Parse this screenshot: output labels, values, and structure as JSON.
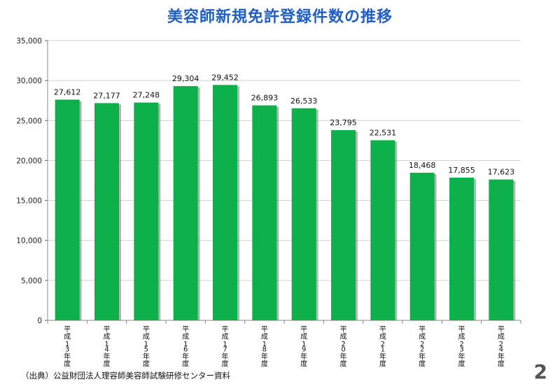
{
  "title": "美容師新規免許登録件数の推移",
  "source": "（出典）公益財団法人理容師美容師試験研修センター資料",
  "page_number": "2",
  "colors": {
    "bar": "#0db04b",
    "bar_shadow": "#7a7a7a",
    "grid": "#d0d0d0",
    "title": "#1f5fc4"
  },
  "chart_data": {
    "type": "bar",
    "title": "美容師新規免許登録件数の推移",
    "xlabel": "",
    "ylabel": "",
    "categories": [
      "平成13年度",
      "平成14年度",
      "平成15年度",
      "平成16年度",
      "平成17年度",
      "平成18年度",
      "平成19年度",
      "平成20年度",
      "平成21年度",
      "平成22年度",
      "平成23年度",
      "平成24年度"
    ],
    "values": [
      27612,
      27177,
      27248,
      29304,
      29452,
      26893,
      26533,
      23795,
      22531,
      18468,
      17855,
      17623
    ],
    "value_labels": [
      "27,612",
      "27,177",
      "27,248",
      "29,304",
      "29,452",
      "26,893",
      "26,533",
      "23,795",
      "22,531",
      "18,468",
      "17,855",
      "17,623"
    ],
    "ylim": [
      0,
      35000
    ],
    "yticks": [
      0,
      5000,
      10000,
      15000,
      20000,
      25000,
      30000,
      35000
    ],
    "ytick_labels": [
      "0",
      "5,000",
      "10,000",
      "15,000",
      "20,000",
      "25,000",
      "30,000",
      "35,000"
    ],
    "grid": true,
    "legend": "none"
  }
}
